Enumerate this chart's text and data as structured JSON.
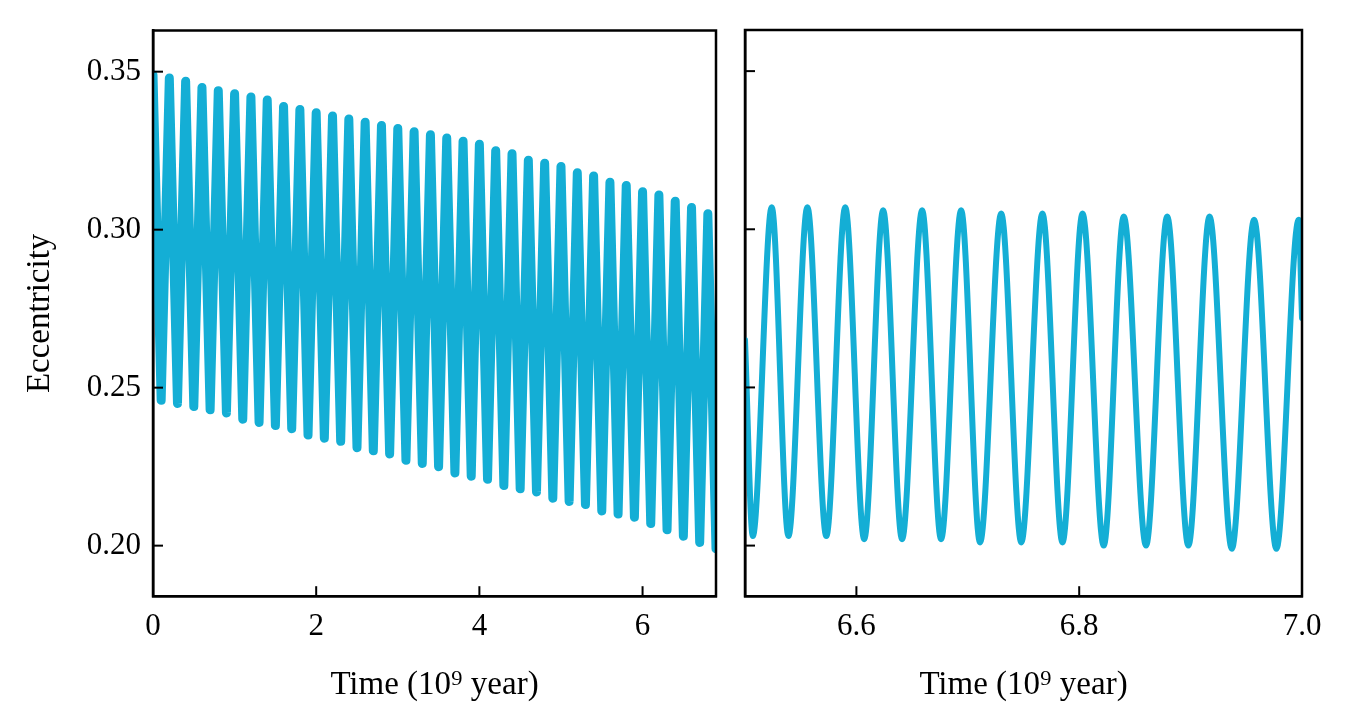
{
  "chart_data": [
    {
      "type": "line",
      "ylabel": "Eccentricity",
      "xlabel": "Time (10⁹ year)",
      "xlim": [
        0,
        6.9
      ],
      "xticks": [
        0,
        2,
        4,
        6
      ],
      "ylim": [
        0.184,
        0.363
      ],
      "yticks": [
        {
          "value": 0.2,
          "label": "0.20"
        },
        0.25,
        {
          "value": 0.3,
          "label": "0.30"
        },
        0.35
      ],
      "grid": false,
      "legend": false,
      "marker": "none",
      "line_style": "solid",
      "series": [
        {
          "color": "#14aed5",
          "x": [
            0,
            0.1,
            0.2,
            0.3,
            0.4,
            0.5,
            0.6,
            0.7,
            0.8,
            0.9,
            1.0,
            1.1,
            1.2,
            1.3,
            1.4,
            1.5,
            1.6,
            1.7,
            1.8,
            1.9,
            2.0,
            2.1,
            2.2,
            2.3,
            2.4,
            2.5,
            2.6,
            2.7,
            2.8,
            2.9,
            3.0,
            3.1,
            3.2,
            3.3,
            3.4,
            3.5,
            3.6,
            3.7,
            3.8,
            3.9,
            4.0,
            4.1,
            4.2,
            4.3,
            4.4,
            4.5,
            4.6,
            4.7,
            4.8,
            4.9,
            5.0,
            5.1,
            5.2,
            5.3,
            5.4,
            5.5,
            5.6,
            5.7,
            5.8,
            5.9,
            6.0,
            6.1,
            6.2,
            6.3,
            6.4,
            6.5,
            6.6,
            6.7,
            6.8,
            6.9
          ],
          "values": [
            0.349,
            0.246,
            0.348,
            0.245,
            0.347,
            0.244,
            0.345,
            0.243,
            0.344,
            0.242,
            0.343,
            0.24,
            0.342,
            0.239,
            0.341,
            0.238,
            0.339,
            0.237,
            0.338,
            0.235,
            0.337,
            0.234,
            0.336,
            0.233,
            0.335,
            0.231,
            0.334,
            0.23,
            0.333,
            0.229,
            0.332,
            0.227,
            0.331,
            0.226,
            0.33,
            0.225,
            0.329,
            0.223,
            0.328,
            0.222,
            0.327,
            0.221,
            0.325,
            0.219,
            0.324,
            0.218,
            0.322,
            0.217,
            0.321,
            0.215,
            0.32,
            0.214,
            0.318,
            0.213,
            0.317,
            0.211,
            0.315,
            0.21,
            0.314,
            0.209,
            0.312,
            0.207,
            0.311,
            0.205,
            0.309,
            0.203,
            0.307,
            0.201,
            0.305,
            0.199
          ]
        }
      ]
    },
    {
      "type": "line",
      "xlabel": "Time (10⁹ year)",
      "xlim": [
        6.5,
        7.0
      ],
      "xticks": [
        6.6,
        6.8,
        {
          "value": 7,
          "label": "7.0"
        }
      ],
      "ylim": [
        0.184,
        0.363
      ],
      "yticks": [
        0.2,
        0.25,
        0.3,
        0.35
      ],
      "tick_labels": "x",
      "grid": false,
      "legend": false,
      "marker": "none",
      "line_style": "solid",
      "series": [
        {
          "color": "#14aed5",
          "x": [
            6.5,
            6.507,
            6.524,
            6.539,
            6.556,
            6.573,
            6.59,
            6.607,
            6.624,
            6.641,
            6.659,
            6.676,
            6.694,
            6.711,
            6.73,
            6.748,
            6.767,
            6.785,
            6.803,
            6.822,
            6.84,
            6.86,
            6.879,
            6.898,
            6.917,
            6.937,
            6.957,
            6.977,
            6.997,
            7.0
          ],
          "values": [
            0.265,
            0.203,
            0.307,
            0.203,
            0.307,
            0.203,
            0.307,
            0.202,
            0.306,
            0.202,
            0.306,
            0.202,
            0.306,
            0.201,
            0.305,
            0.201,
            0.305,
            0.201,
            0.305,
            0.2,
            0.304,
            0.2,
            0.304,
            0.2,
            0.304,
            0.199,
            0.303,
            0.199,
            0.303,
            0.272
          ]
        }
      ]
    }
  ]
}
